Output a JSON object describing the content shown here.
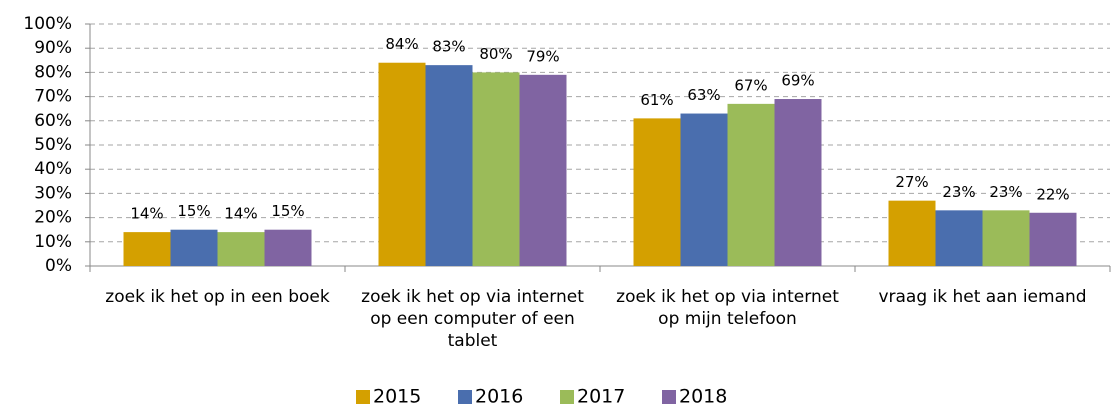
{
  "chart_data": {
    "type": "bar",
    "categories": [
      "zoek ik het op in een boek",
      "zoek ik het op via internet op een computer of een tablet",
      "zoek ik het op via internet op mijn telefoon",
      "vraag ik het aan iemand"
    ],
    "series": [
      {
        "name": "2015",
        "color": "#d4a000",
        "values": [
          14,
          84,
          61,
          27
        ],
        "value_labels": [
          "14%",
          "84%",
          "61%",
          "27%"
        ]
      },
      {
        "name": "2016",
        "color": "#4a6eae",
        "values": [
          15,
          83,
          63,
          23
        ],
        "value_labels": [
          "15%",
          "83%",
          "63%",
          "23%"
        ]
      },
      {
        "name": "2017",
        "color": "#9bbb59",
        "values": [
          14,
          80,
          67,
          23
        ],
        "value_labels": [
          "14%",
          "80%",
          "67%",
          "23%"
        ]
      },
      {
        "name": "2018",
        "color": "#8064a2",
        "values": [
          15,
          79,
          69,
          22
        ],
        "value_labels": [
          "15%",
          "79%",
          "69%",
          "22%"
        ]
      }
    ],
    "ylim": [
      0,
      100
    ],
    "yticks": [
      {
        "value": 0,
        "label": "0%"
      },
      {
        "value": 10,
        "label": "10%"
      },
      {
        "value": 20,
        "label": "20%"
      },
      {
        "value": 30,
        "label": "30%"
      },
      {
        "value": 40,
        "label": "40%"
      },
      {
        "value": 50,
        "label": "50%"
      },
      {
        "value": 60,
        "label": "60%"
      },
      {
        "value": 70,
        "label": "70%"
      },
      {
        "value": 80,
        "label": "80%"
      },
      {
        "value": 90,
        "label": "90%"
      },
      {
        "value": 100,
        "label": "100%"
      }
    ],
    "grid": true,
    "legend": "bottom"
  }
}
